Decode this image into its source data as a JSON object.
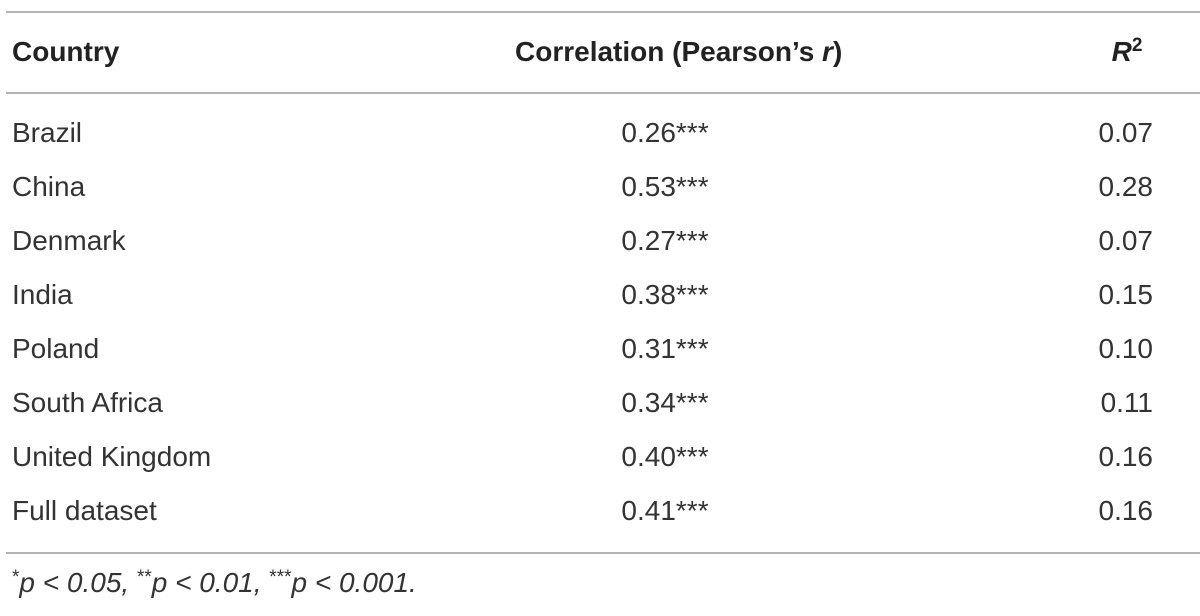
{
  "table": {
    "headers": [
      [
        "Country"
      ],
      [
        "Correlation (Pearson’s ",
        "r",
        ")"
      ],
      [
        "R",
        "2"
      ]
    ],
    "rows": [
      [
        "Brazil",
        "0.26***",
        "0.07"
      ],
      [
        "China",
        "0.53***",
        "0.28"
      ],
      [
        "Denmark",
        "0.27***",
        "0.07"
      ],
      [
        "India",
        "0.38***",
        "0.15"
      ],
      [
        "Poland",
        "0.31***",
        "0.10"
      ],
      [
        "South Africa",
        "0.34***",
        "0.11"
      ],
      [
        "United Kingdom",
        "0.40***",
        "0.16"
      ],
      [
        "Full dataset",
        "0.41***",
        "0.16"
      ]
    ],
    "footnote": [
      "*",
      "p",
      " < 0.05, ",
      "**",
      "p",
      " < 0.01, ",
      "***",
      "p",
      " < 0.001."
    ]
  }
}
